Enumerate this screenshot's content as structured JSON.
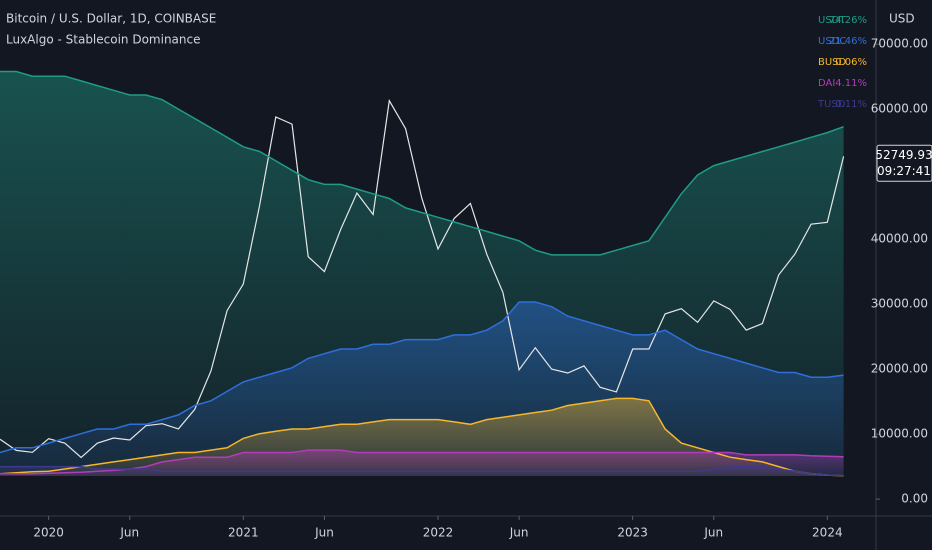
{
  "chart_data": {
    "type": "line",
    "title": "Bitcoin / U.S. Dollar, 1D, COINBASE",
    "subtitle": "LuxAlgo - Stablecoin Dominance",
    "currency": "USD",
    "countdown": "09:27:41",
    "x": [
      "2019-10",
      "2019-11",
      "2019-12",
      "2020-01",
      "2020-02",
      "2020-03",
      "2020-04",
      "2020-05",
      "2020-06",
      "2020-07",
      "2020-08",
      "2020-09",
      "2020-10",
      "2020-11",
      "2020-12",
      "2021-01",
      "2021-02",
      "2021-03",
      "2021-04",
      "2021-05",
      "2021-06",
      "2021-07",
      "2021-08",
      "2021-09",
      "2021-10",
      "2021-11",
      "2021-12",
      "2022-01",
      "2022-02",
      "2022-03",
      "2022-04",
      "2022-05",
      "2022-06",
      "2022-07",
      "2022-08",
      "2022-09",
      "2022-10",
      "2022-11",
      "2022-12",
      "2023-01",
      "2023-02",
      "2023-03",
      "2023-04",
      "2023-05",
      "2023-06",
      "2023-07",
      "2023-08",
      "2023-09",
      "2023-10",
      "2023-11",
      "2023-12",
      "2024-01",
      "2024-02"
    ],
    "xlim": [
      "2019-10",
      "2024-04"
    ],
    "xticks": [
      {
        "value": "2020-01",
        "label": "2020"
      },
      {
        "value": "2020-06",
        "label": "Jun"
      },
      {
        "value": "2021-01",
        "label": "2021"
      },
      {
        "value": "2021-06",
        "label": "Jun"
      },
      {
        "value": "2022-01",
        "label": "2022"
      },
      {
        "value": "2022-06",
        "label": "Jun"
      },
      {
        "value": "2023-01",
        "label": "2023"
      },
      {
        "value": "2023-06",
        "label": "Jun"
      },
      {
        "value": "2024-01",
        "label": "2024"
      }
    ],
    "ylim": [
      -2600,
      76800
    ],
    "yticks": [
      {
        "value": 0,
        "label": "0.00"
      },
      {
        "value": 10000,
        "label": "10000.00"
      },
      {
        "value": 20000,
        "label": "20000.00"
      },
      {
        "value": 30000,
        "label": "30000.00"
      },
      {
        "value": 40000,
        "label": "40000.00"
      },
      {
        "value": 60000,
        "label": "60000.00"
      },
      {
        "value": 70000,
        "label": "70000.00"
      }
    ],
    "y2lim": [
      -8.5,
      101.2
    ],
    "series": [
      {
        "name": "Bitcoin",
        "color": "#e6e6e6",
        "values": [
          9200,
          7500,
          7200,
          9300,
          8600,
          6400,
          8600,
          9400,
          9100,
          11300,
          11600,
          10800,
          13800,
          19700,
          29000,
          33100,
          45200,
          58800,
          57700,
          37300,
          35000,
          41500,
          47100,
          43800,
          61300,
          57000,
          46300,
          38500,
          43200,
          45500,
          37700,
          31800,
          19900,
          23300,
          20000,
          19400,
          20500,
          17200,
          16500,
          23100,
          23100,
          28500,
          29300,
          27200,
          30500,
          29200,
          26000,
          27000,
          34500,
          37700,
          42300,
          42600,
          52749.93
        ]
      },
      {
        "name": "USDT",
        "color": "#1f9b87",
        "axis": "y2",
        "values": [
          86,
          86,
          85,
          85,
          85,
          84,
          83,
          82,
          81,
          81,
          80,
          78,
          76,
          74,
          72,
          70,
          69,
          67,
          65,
          63,
          62,
          62,
          61,
          60,
          59,
          57,
          56,
          55,
          54,
          53,
          52,
          51,
          50,
          48,
          47,
          47,
          47,
          47,
          48,
          49,
          50,
          55,
          60,
          64,
          66,
          67,
          68,
          69,
          70,
          71,
          72,
          73,
          74.26
        ],
        "value_labels": [
          null,
          null,
          null,
          null,
          null,
          null,
          null,
          null,
          null,
          null,
          null,
          null,
          null,
          null,
          null,
          null,
          null,
          null,
          null,
          null,
          null,
          null,
          null,
          null,
          null,
          null,
          null,
          null,
          null,
          null,
          null,
          null,
          null,
          null,
          null,
          null,
          null,
          null,
          null,
          null,
          null,
          null,
          null,
          null,
          null,
          null,
          null,
          null,
          null,
          null,
          null,
          null,
          "74.26%"
        ]
      },
      {
        "name": "USDC",
        "color": "#2f6fdc",
        "axis": "y2",
        "values": [
          5,
          6,
          6,
          7,
          8,
          9,
          10,
          10,
          11,
          11,
          12,
          13,
          15,
          16,
          18,
          20,
          21,
          22,
          23,
          25,
          26,
          27,
          27,
          28,
          28,
          29,
          29,
          29,
          30,
          30,
          31,
          33,
          37,
          37,
          36,
          34,
          33,
          32,
          31,
          30,
          30,
          31,
          29,
          27,
          26,
          25,
          24,
          23,
          22,
          22,
          21,
          21,
          21.46
        ],
        "value_labels": [
          null,
          null,
          null,
          null,
          null,
          null,
          null,
          null,
          null,
          null,
          null,
          null,
          null,
          null,
          null,
          null,
          null,
          null,
          null,
          null,
          null,
          null,
          null,
          null,
          null,
          null,
          null,
          null,
          null,
          null,
          null,
          null,
          null,
          null,
          null,
          null,
          null,
          null,
          null,
          null,
          null,
          null,
          null,
          null,
          null,
          null,
          null,
          null,
          null,
          null,
          null,
          null,
          "21.46%"
        ]
      },
      {
        "name": "BUSD",
        "color": "#f5b62a",
        "axis": "y2",
        "values": [
          0.5,
          0.7,
          0.9,
          1,
          1.5,
          2,
          2.5,
          3,
          3.5,
          4,
          4.5,
          5,
          5,
          5.5,
          6,
          8,
          9,
          9.5,
          10,
          10,
          10.5,
          11,
          11,
          11.5,
          12,
          12,
          12,
          12,
          11.5,
          11,
          12,
          12.5,
          13,
          13.5,
          14,
          15,
          15.5,
          16,
          16.5,
          16.5,
          16,
          10,
          7,
          6,
          5,
          4,
          3.5,
          3,
          2,
          1,
          0.5,
          0.2,
          0.06
        ],
        "value_labels": [
          null,
          null,
          null,
          null,
          null,
          null,
          null,
          null,
          null,
          null,
          null,
          null,
          null,
          null,
          null,
          null,
          null,
          null,
          null,
          null,
          null,
          null,
          null,
          null,
          null,
          null,
          null,
          null,
          null,
          null,
          null,
          null,
          null,
          null,
          null,
          null,
          null,
          null,
          null,
          null,
          null,
          null,
          null,
          null,
          null,
          null,
          null,
          null,
          null,
          null,
          null,
          null,
          "0.06%"
        ]
      },
      {
        "name": "DAI",
        "color": "#b23cb8",
        "axis": "y2",
        "values": [
          0.5,
          0.5,
          0.5,
          0.6,
          0.7,
          0.8,
          1,
          1.2,
          1.5,
          2,
          3,
          3.5,
          4,
          4,
          4,
          5,
          5,
          5,
          5,
          5.5,
          5.5,
          5.5,
          5,
          5,
          5,
          5,
          5,
          5,
          5,
          5,
          5,
          5,
          5,
          5,
          5,
          5,
          5,
          5,
          5,
          5,
          5,
          5,
          5,
          5,
          5,
          5,
          4.5,
          4.5,
          4.5,
          4.5,
          4.3,
          4.2,
          4.11
        ],
        "value_labels": [
          null,
          null,
          null,
          null,
          null,
          null,
          null,
          null,
          null,
          null,
          null,
          null,
          null,
          null,
          null,
          null,
          null,
          null,
          null,
          null,
          null,
          null,
          null,
          null,
          null,
          null,
          null,
          null,
          null,
          null,
          null,
          null,
          null,
          null,
          null,
          null,
          null,
          null,
          null,
          null,
          null,
          null,
          null,
          null,
          null,
          null,
          null,
          null,
          null,
          null,
          null,
          null,
          "4.11%"
        ]
      },
      {
        "name": "TUSD",
        "color": "#3d3a8a",
        "axis": "y2",
        "values": [
          2,
          2,
          2,
          2,
          2,
          2,
          1.5,
          1.5,
          1.5,
          1.5,
          1,
          1,
          1,
          1,
          1,
          1,
          1,
          1,
          1,
          1,
          1,
          1,
          1,
          1,
          1,
          1,
          1,
          1,
          1,
          1,
          1,
          1,
          1,
          1,
          1,
          1,
          1,
          1,
          1,
          1,
          1,
          1,
          1,
          1,
          1.5,
          2,
          2,
          2,
          1.5,
          1,
          0.5,
          0.2,
          0.11
        ],
        "value_labels": [
          null,
          null,
          null,
          null,
          null,
          null,
          null,
          null,
          null,
          null,
          null,
          null,
          null,
          null,
          null,
          null,
          null,
          null,
          null,
          null,
          null,
          null,
          null,
          null,
          null,
          null,
          null,
          null,
          null,
          null,
          null,
          null,
          null,
          null,
          null,
          null,
          null,
          null,
          null,
          null,
          null,
          null,
          null,
          null,
          null,
          null,
          null,
          null,
          null,
          null,
          null,
          null,
          "0.11%"
        ]
      }
    ]
  }
}
